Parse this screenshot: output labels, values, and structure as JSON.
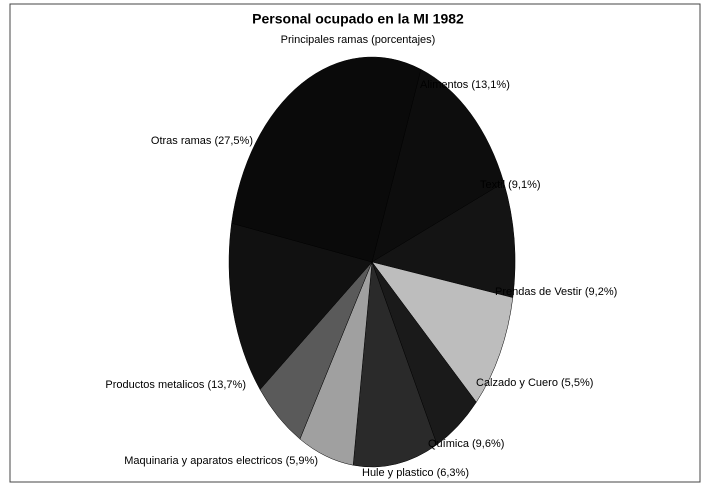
{
  "chart_data": {
    "type": "pie",
    "title": "Personal ocupado en la MI 1982",
    "subtitle": "Principales ramas (porcentajes)",
    "categories": [
      "Alimentos (13,1%)",
      "Textil (9,1%)",
      "Prendas de Vestir (9,2%)",
      "Calzado y Cuero (5,5%)",
      "Química (9,6%)",
      "Hule y plastico (6,3%)",
      "Maquinaria y aparatos electricos (5,9%)",
      "Productos metalicos (13,7%)",
      "Otras ramas (27,5%)"
    ],
    "values": [
      13.1,
      9.1,
      9.2,
      5.5,
      9.6,
      6.3,
      5.9,
      13.7,
      27.5
    ],
    "colors": [
      "#0d0d0d",
      "#141414",
      "#bdbdbd",
      "#1a1a1a",
      "#2a2a2a",
      "#a0a0a0",
      "#5a5a5a",
      "#111111",
      "#0a0a0a"
    ]
  }
}
